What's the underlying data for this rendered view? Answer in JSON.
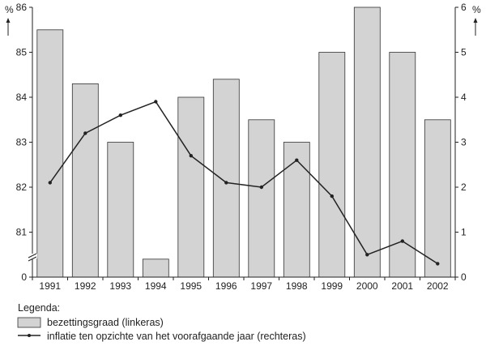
{
  "chart_data": {
    "type": "bar",
    "categories": [
      "1991",
      "1992",
      "1993",
      "1994",
      "1995",
      "1996",
      "1997",
      "1998",
      "1999",
      "2000",
      "2001",
      "2002"
    ],
    "series": [
      {
        "name": "bezettingsgraad (linkeras)",
        "type": "bar",
        "axis": "left",
        "values": [
          85.5,
          84.3,
          83.0,
          80.4,
          84.0,
          84.4,
          83.5,
          83.0,
          85.0,
          86.0,
          85.0,
          83.5
        ],
        "color": "#d3d3d3"
      },
      {
        "name": "inflatie ten opzichte van het voorafgaande jaar (rechteras)",
        "type": "line",
        "axis": "right",
        "values": [
          2.1,
          3.2,
          3.6,
          3.9,
          2.7,
          2.1,
          2.0,
          2.6,
          1.8,
          0.5,
          0.8,
          0.3
        ],
        "color": "#222222"
      }
    ],
    "y_left": {
      "unit": "%",
      "ticks": [
        "86",
        "85",
        "84",
        "83",
        "82",
        "81",
        "0"
      ],
      "tick_values": [
        86,
        85,
        84,
        83,
        82,
        81,
        80
      ],
      "range": [
        80,
        86
      ],
      "axis_break": true
    },
    "y_right": {
      "unit": "%",
      "ticks": [
        "6",
        "5",
        "4",
        "3",
        "2",
        "1",
        "0"
      ],
      "tick_values": [
        6,
        5,
        4,
        3,
        2,
        1,
        0
      ],
      "range": [
        0,
        6
      ]
    },
    "legend": {
      "title": "Legenda:",
      "placement": "bottom-left",
      "entries": [
        "bezettingsgraad (linkeras)",
        "inflatie ten opzichte van het voorafgaande jaar (rechteras)"
      ]
    },
    "grid": false
  }
}
